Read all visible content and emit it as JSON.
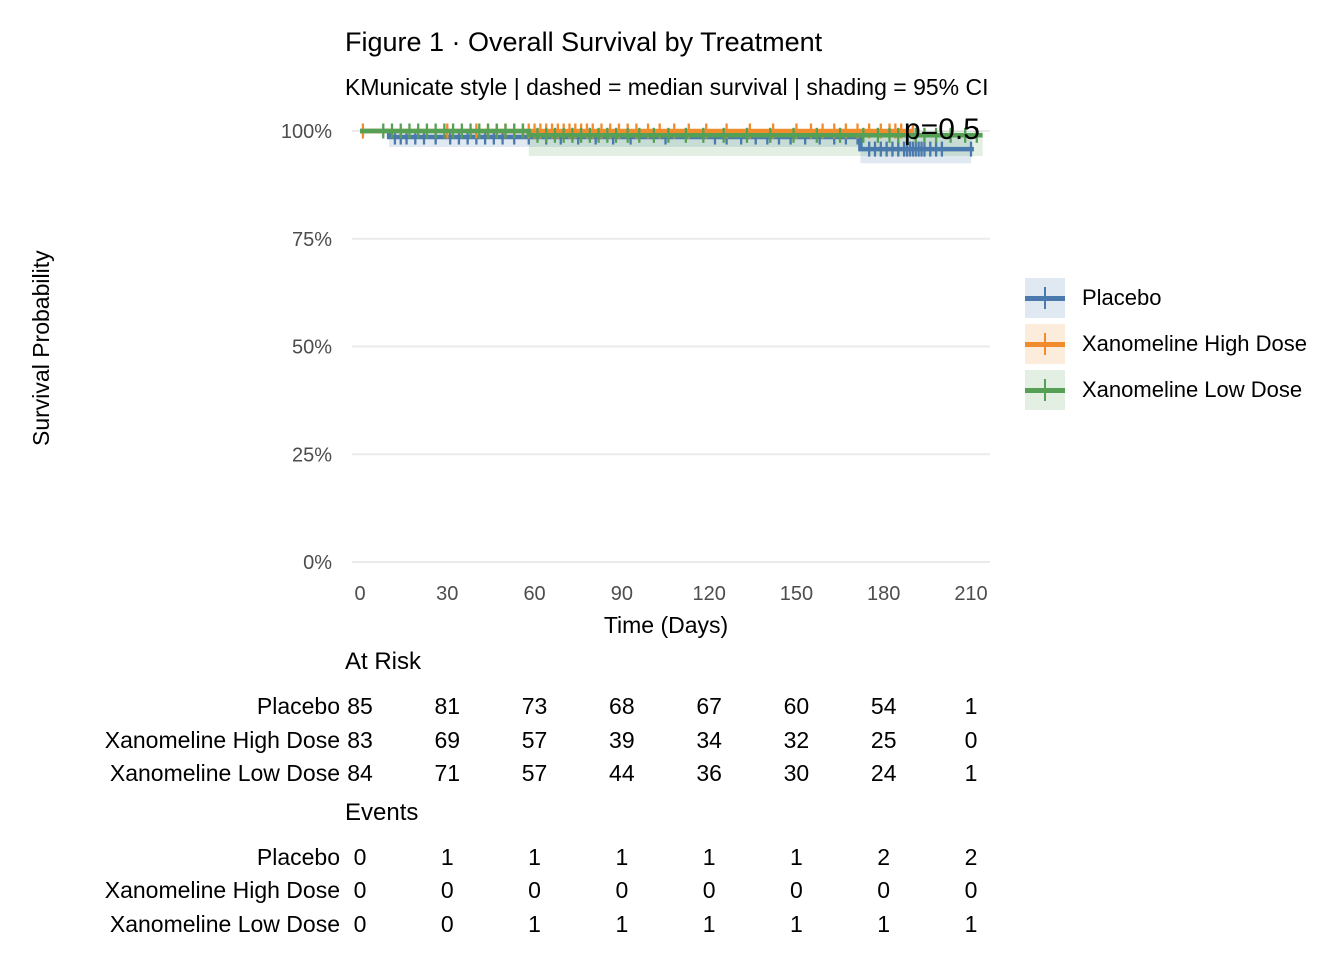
{
  "chart_data": {
    "type": "line",
    "subtype": "kaplan-meier-step",
    "title": "Figure 1 · Overall Survival by Treatment",
    "subtitle": "KMunicate style | dashed = median survival | shading = 95% CI",
    "xlabel": "Time (Days)",
    "ylabel": "Survival Probability",
    "xlim": [
      0,
      214
    ],
    "ylim": [
      0,
      100
    ],
    "x_ticks": [
      0,
      30,
      60,
      90,
      120,
      150,
      180,
      210
    ],
    "y_ticks": [
      {
        "value": 0,
        "label": "0%"
      },
      {
        "value": 25,
        "label": "25%"
      },
      {
        "value": 50,
        "label": "50%"
      },
      {
        "value": 75,
        "label": "75%"
      },
      {
        "value": 100,
        "label": "100%"
      }
    ],
    "grid": "horizontal",
    "legend_position": "right",
    "annotation": {
      "text": "p=0.5"
    },
    "colors": {
      "grid": "#ebebeb",
      "axis_text": "#4d4d4d",
      "text": "#000000"
    },
    "series": [
      {
        "name": "Placebo",
        "color": "#4a79ad",
        "band_color": "rgba(74,121,173,0.17)",
        "step_points": [
          [
            0,
            100
          ],
          [
            10,
            100
          ],
          [
            10,
            98.6
          ],
          [
            172,
            98.6
          ],
          [
            172,
            95.8
          ],
          [
            211,
            95.8
          ]
        ],
        "ci": [
          {
            "from": 10,
            "to": 172,
            "lower": 96.3,
            "upper": 100
          },
          {
            "from": 172,
            "to": 210,
            "lower": 92.5,
            "upper": 99
          }
        ],
        "censor_days": [
          12,
          14,
          16,
          19,
          22,
          26,
          31,
          34,
          37,
          40,
          43,
          46,
          49,
          53,
          58,
          64,
          69,
          75,
          81,
          87,
          93,
          105,
          122,
          126,
          131,
          136,
          140,
          144,
          148,
          153,
          158,
          163,
          167,
          171,
          175,
          177,
          179,
          181,
          183,
          185,
          187,
          188,
          189,
          190,
          191,
          192,
          193,
          194,
          196,
          198,
          200,
          210
        ]
      },
      {
        "name": "Xanomeline High Dose",
        "color": "#f08c2d",
        "band_color": "rgba(240,140,45,0.17)",
        "step_points": [
          [
            0,
            100
          ],
          [
            190,
            100
          ]
        ],
        "ci": [
          {
            "from": 38,
            "to": 190,
            "lower": 99.2,
            "upper": 100
          }
        ],
        "censor_days": [
          1,
          30,
          40,
          44,
          47,
          50,
          53,
          56,
          58,
          60,
          62,
          64,
          66,
          68,
          70,
          72,
          74,
          76,
          78,
          80,
          83,
          86,
          89,
          92,
          95,
          99,
          103,
          108,
          113,
          119,
          126,
          134,
          142,
          150,
          155,
          159,
          163,
          167,
          171,
          175,
          179,
          182,
          184,
          186,
          188,
          190
        ]
      },
      {
        "name": "Xanomeline Low Dose",
        "color": "#55a054",
        "band_color": "rgba(85,160,84,0.17)",
        "step_points": [
          [
            0,
            100
          ],
          [
            58,
            100
          ],
          [
            58,
            99
          ],
          [
            214,
            99
          ]
        ],
        "ci": [
          {
            "from": 58,
            "to": 214,
            "lower": 94.2,
            "upper": 100
          }
        ],
        "censor_days": [
          8,
          11,
          14,
          17,
          20,
          23,
          26,
          29,
          32,
          35,
          38,
          41,
          44,
          47,
          50,
          53,
          56,
          61,
          64,
          67,
          70,
          73,
          76,
          79,
          82,
          85,
          88,
          92,
          96,
          101,
          106,
          112,
          118,
          125,
          133,
          141,
          149,
          157,
          165,
          173,
          178,
          182,
          185,
          188,
          191,
          194,
          198,
          203,
          208,
          212
        ]
      }
    ],
    "risk_tables": {
      "time_points": [
        0,
        30,
        60,
        90,
        120,
        150,
        180,
        210
      ],
      "at_risk": {
        "header": "At Risk",
        "rows": [
          {
            "label": "Placebo",
            "values": [
              85,
              81,
              73,
              68,
              67,
              60,
              54,
              1
            ]
          },
          {
            "label": "Xanomeline High Dose",
            "values": [
              83,
              69,
              57,
              39,
              34,
              32,
              25,
              0
            ]
          },
          {
            "label": "Xanomeline Low Dose",
            "values": [
              84,
              71,
              57,
              44,
              36,
              30,
              24,
              1
            ]
          }
        ]
      },
      "events": {
        "header": "Events",
        "rows": [
          {
            "label": "Placebo",
            "values": [
              0,
              1,
              1,
              1,
              1,
              1,
              2,
              2
            ]
          },
          {
            "label": "Xanomeline High Dose",
            "values": [
              0,
              0,
              0,
              0,
              0,
              0,
              0,
              0
            ]
          },
          {
            "label": "Xanomeline Low Dose",
            "values": [
              0,
              0,
              1,
              1,
              1,
              1,
              1,
              1
            ]
          }
        ]
      }
    }
  }
}
